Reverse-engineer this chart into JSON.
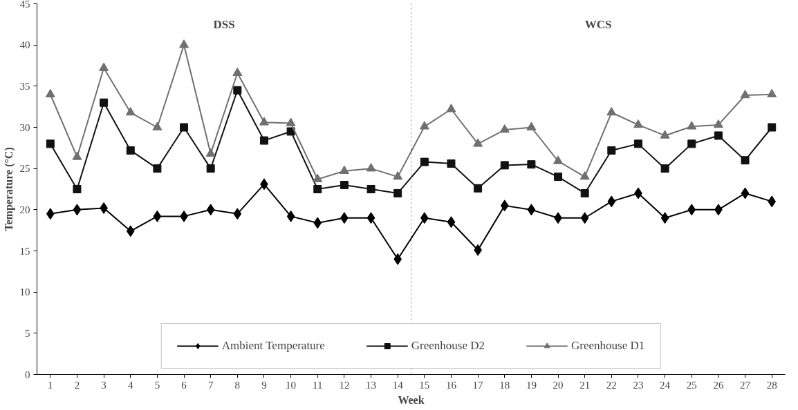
{
  "chart_data": {
    "type": "line",
    "xlabel": "Week",
    "ylabel": "Temperature (°C)",
    "x": [
      1,
      2,
      3,
      4,
      5,
      6,
      7,
      8,
      9,
      10,
      11,
      12,
      13,
      14,
      15,
      16,
      17,
      18,
      19,
      20,
      21,
      22,
      23,
      24,
      25,
      26,
      27,
      28
    ],
    "xlim": [
      0.5,
      28.5
    ],
    "xticks": [
      1,
      2,
      3,
      4,
      5,
      6,
      7,
      8,
      9,
      10,
      11,
      12,
      13,
      14,
      15,
      16,
      17,
      18,
      19,
      20,
      21,
      22,
      23,
      24,
      25,
      26,
      27,
      28
    ],
    "ylim": [
      0,
      45
    ],
    "yticks": [
      0,
      5,
      10,
      15,
      20,
      25,
      30,
      35,
      40,
      45
    ],
    "series": [
      {
        "name": "Ambient Temperature",
        "color": "#000000",
        "marker": "diamond",
        "values": [
          19.5,
          20,
          20.2,
          17.4,
          19.2,
          19.2,
          20,
          19.5,
          23.1,
          19.2,
          18.4,
          19,
          19,
          14,
          19,
          18.5,
          15.1,
          20.5,
          20,
          19,
          19,
          21,
          22,
          19,
          20,
          20,
          22,
          21
        ]
      },
      {
        "name": "Greenhouse D2",
        "color": "#111111",
        "marker": "square",
        "values": [
          28,
          22.5,
          33,
          27.2,
          25,
          30,
          25,
          34.5,
          28.4,
          29.5,
          22.5,
          23,
          22.5,
          22,
          25.8,
          25.6,
          22.6,
          25.4,
          25.5,
          24,
          22,
          27.2,
          28,
          25,
          28,
          29,
          26,
          30
        ]
      },
      {
        "name": "Greenhouse D1",
        "color": "#707070",
        "marker": "triangle",
        "values": [
          34,
          26.4,
          37.2,
          31.8,
          30,
          40,
          26.8,
          36.6,
          30.6,
          30.5,
          23.7,
          24.7,
          25,
          24,
          30.1,
          32.2,
          28,
          29.7,
          30,
          25.9,
          24,
          31.8,
          30.3,
          29,
          30.1,
          30.3,
          33.9,
          34
        ]
      }
    ],
    "ref_lines": [
      {
        "axis": "x",
        "value": 14.5,
        "color": "#808080",
        "line_style": "dotted"
      }
    ],
    "annotations": [
      "DSS",
      "WCS"
    ],
    "legend": "bottom",
    "grid": false,
    "line_style": "solid"
  }
}
